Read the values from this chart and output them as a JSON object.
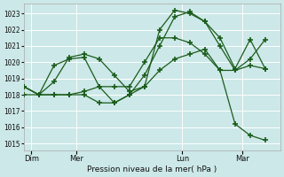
{
  "bg_color": "#cce8e8",
  "grid_color": "#ffffff",
  "line_color": "#1a5c1a",
  "marker_color": "#1a5c1a",
  "ylabel_vals": [
    1015,
    1016,
    1017,
    1018,
    1019,
    1020,
    1021,
    1022,
    1023
  ],
  "xlabel": "Pression niveau de la mer( hPa )",
  "xtick_labels": [
    "Dim",
    "Mer",
    "Lun",
    "Mar"
  ],
  "xtick_positions": [
    0.5,
    3.5,
    10.5,
    14.5
  ],
  "xlim": [
    0,
    17
  ],
  "ylim": [
    1014.6,
    1023.6
  ],
  "series": [
    {
      "x": [
        0,
        1,
        2,
        3,
        4,
        5,
        6,
        7,
        8,
        9,
        10,
        11,
        12,
        13,
        14,
        15,
        16
      ],
      "y": [
        1018.5,
        1018.0,
        1018.8,
        1020.3,
        1020.5,
        1020.2,
        1019.2,
        1018.2,
        1018.5,
        1022.0,
        1023.2,
        1023.0,
        1022.5,
        1021.5,
        1019.6,
        1021.4,
        1019.6
      ]
    },
    {
      "x": [
        0,
        1,
        2,
        3,
        4,
        5,
        6,
        7,
        8,
        9,
        10,
        11,
        12,
        13,
        14,
        15,
        16
      ],
      "y": [
        1018.0,
        1018.0,
        1019.8,
        1020.2,
        1020.3,
        1018.5,
        1017.5,
        1018.0,
        1019.2,
        1021.0,
        1022.8,
        1023.1,
        1022.5,
        1021.0,
        1019.5,
        1019.8,
        1019.6
      ]
    },
    {
      "x": [
        0,
        1,
        2,
        3,
        4,
        5,
        6,
        7,
        8,
        9,
        10,
        11,
        12,
        13,
        14,
        15,
        16
      ],
      "y": [
        1018.5,
        1018.0,
        1018.0,
        1018.0,
        1018.2,
        1018.5,
        1018.5,
        1018.5,
        1020.0,
        1021.5,
        1021.5,
        1021.2,
        1020.5,
        1019.5,
        1019.5,
        1020.2,
        1021.4
      ]
    },
    {
      "x": [
        0,
        1,
        2,
        3,
        4,
        5,
        6,
        7,
        8,
        9,
        10,
        11,
        12,
        13,
        14,
        15,
        16
      ],
      "y": [
        1018.5,
        1018.0,
        1018.0,
        1018.0,
        1018.0,
        1017.5,
        1017.5,
        1018.0,
        1018.5,
        1019.5,
        1020.2,
        1020.5,
        1020.8,
        1019.5,
        1016.2,
        1015.5,
        1015.2
      ]
    }
  ],
  "day_vlines": [
    0.5,
    3.5,
    10.5,
    14.5
  ]
}
